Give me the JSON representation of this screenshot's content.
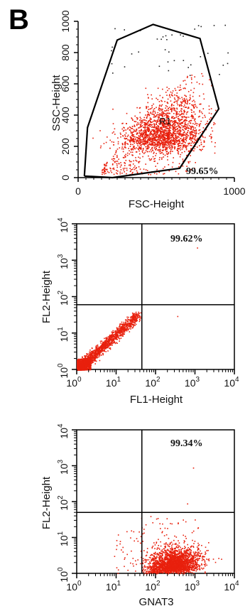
{
  "figure": {
    "panel_label": "B"
  },
  "chart_data": [
    {
      "id": "fsc-ssc",
      "type": "scatter",
      "xlabel": "FSC-Height",
      "ylabel": "SSC-Height",
      "xscale": "linear",
      "yscale": "linear",
      "xlim": [
        0,
        1000
      ],
      "ylim": [
        0,
        1000
      ],
      "x_ticks": [
        {
          "value": 0,
          "label": "0"
        },
        {
          "value": 1000,
          "label": "1000"
        }
      ],
      "y_ticks": [
        {
          "value": 0,
          "label": "0"
        },
        {
          "value": 200,
          "label": "200"
        },
        {
          "value": 400,
          "label": "400"
        },
        {
          "value": 600,
          "label": "600"
        },
        {
          "value": 800,
          "label": "800"
        },
        {
          "value": 1000,
          "label": "1000"
        }
      ],
      "gate": {
        "name": "R1",
        "vertices": [
          [
            40,
            10
          ],
          [
            60,
            320
          ],
          [
            250,
            880
          ],
          [
            480,
            980
          ],
          [
            780,
            890
          ],
          [
            900,
            440
          ],
          [
            650,
            60
          ],
          [
            220,
            0
          ],
          [
            40,
            10
          ]
        ]
      },
      "annotations": [
        {
          "text": "99.65%",
          "position": "bottom-right"
        }
      ],
      "point_color": "#e8200d",
      "density_center": [
        550,
        200
      ]
    },
    {
      "id": "fl1-fl2",
      "type": "scatter",
      "xlabel": "FL1-Height",
      "ylabel": "FL2-Height",
      "xscale": "log",
      "yscale": "log",
      "xlim": [
        1,
        10000
      ],
      "ylim": [
        1,
        10000
      ],
      "x_ticks": [
        {
          "value": 1,
          "base": "10",
          "exp": "0"
        },
        {
          "value": 10,
          "base": "10",
          "exp": "1"
        },
        {
          "value": 100,
          "base": "10",
          "exp": "2"
        },
        {
          "value": 1000,
          "base": "10",
          "exp": "3"
        },
        {
          "value": 10000,
          "base": "10",
          "exp": "4"
        }
      ],
      "y_ticks": [
        {
          "value": 1,
          "base": "10",
          "exp": "0"
        },
        {
          "value": 10,
          "base": "10",
          "exp": "1"
        },
        {
          "value": 100,
          "base": "10",
          "exp": "2"
        },
        {
          "value": 1000,
          "base": "10",
          "exp": "3"
        },
        {
          "value": 10000,
          "base": "10",
          "exp": "4"
        }
      ],
      "quadrant_x": 45,
      "quadrant_y": 60,
      "annotations": [
        {
          "text": "99.62%",
          "position": "upper-right quadrant"
        }
      ],
      "point_color": "#e8200d",
      "density_center": [
        3,
        3
      ]
    },
    {
      "id": "gnat3-fl2",
      "type": "scatter",
      "xlabel": "GNAT3",
      "ylabel": "FL2-Height",
      "xscale": "log",
      "yscale": "log",
      "xlim": [
        1,
        10000
      ],
      "ylim": [
        1,
        10000
      ],
      "x_ticks": [
        {
          "value": 1,
          "base": "10",
          "exp": "0"
        },
        {
          "value": 10,
          "base": "10",
          "exp": "1"
        },
        {
          "value": 100,
          "base": "10",
          "exp": "2"
        },
        {
          "value": 1000,
          "base": "10",
          "exp": "3"
        },
        {
          "value": 10000,
          "base": "10",
          "exp": "4"
        }
      ],
      "y_ticks": [
        {
          "value": 1,
          "base": "10",
          "exp": "0"
        },
        {
          "value": 10,
          "base": "10",
          "exp": "1"
        },
        {
          "value": 100,
          "base": "10",
          "exp": "2"
        },
        {
          "value": 1000,
          "base": "10",
          "exp": "3"
        },
        {
          "value": 10000,
          "base": "10",
          "exp": "4"
        }
      ],
      "quadrant_x": 45,
      "quadrant_y": 50,
      "annotations": [
        {
          "text": "99.34%",
          "position": "upper-right quadrant"
        }
      ],
      "point_color": "#e8200d",
      "density_center": [
        300,
        3
      ]
    }
  ]
}
